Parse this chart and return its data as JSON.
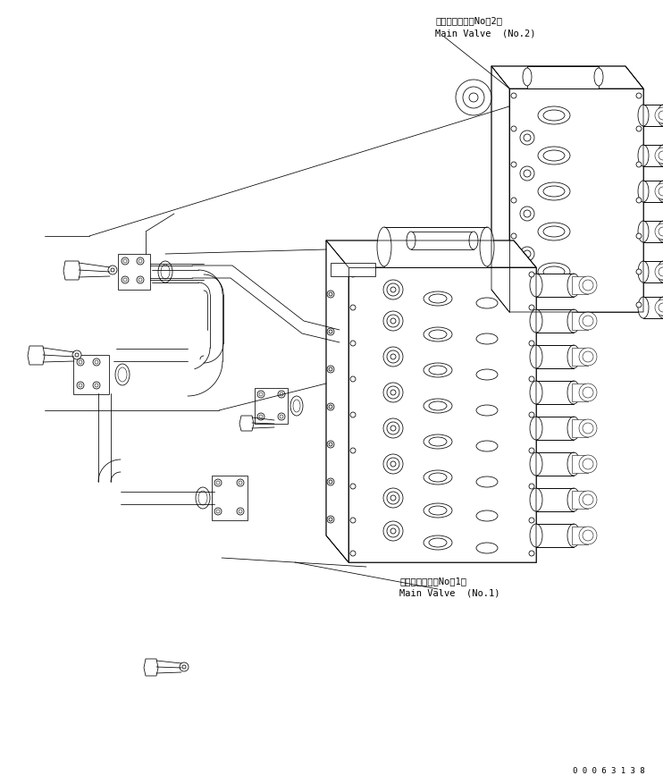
{
  "bg_color": "#ffffff",
  "line_color": "#000000",
  "text_color": "#000000",
  "fig_width": 7.42,
  "fig_height": 8.78,
  "dpi": 100,
  "label_no2_jp": "メインバルブ（No．2）",
  "label_no2_en": "Main Valve  (No.2)",
  "label_no1_jp": "メインバルブ（No．1）",
  "label_no1_en": "Main Valve  (No.1)",
  "watermark": "0 0 0 6 3 1 3 8",
  "font_size_label": 7.5,
  "font_size_watermark": 6.5,
  "lw": 0.55
}
